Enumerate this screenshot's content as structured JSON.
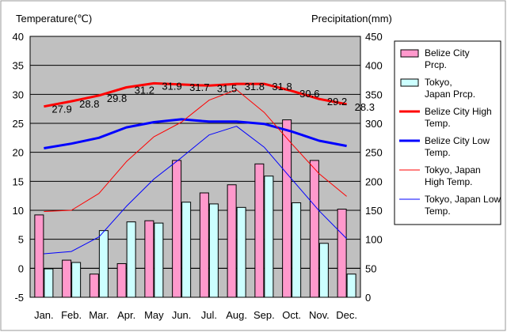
{
  "chart_data": {
    "type": "bar",
    "left_axis": {
      "label": "Temperature(℃)",
      "ylim": [
        -5,
        40
      ],
      "ticks": [
        -5,
        0,
        5,
        10,
        15,
        20,
        25,
        30,
        35,
        40
      ]
    },
    "right_axis": {
      "label": "Precipitation(mm)",
      "ylim": [
        0,
        450
      ],
      "ticks": [
        0,
        50,
        100,
        150,
        200,
        250,
        300,
        350,
        400,
        450
      ]
    },
    "categories": [
      "Jan.",
      "Feb.",
      "Mar.",
      "Apr.",
      "May",
      "Jun.",
      "Jul.",
      "Aug.",
      "Sep.",
      "Oct.",
      "Nov.",
      "Dec."
    ],
    "grid": true,
    "legend_position": "right",
    "bar_series": [
      {
        "name": "Belize City Prcp.",
        "axis": "right",
        "color": "#ff99cc",
        "values": [
          142,
          64,
          40,
          58,
          132,
          236,
          180,
          194,
          230,
          306,
          236,
          152
        ]
      },
      {
        "name": "Tokyo, Japan Prcp.",
        "axis": "right",
        "color": "#ccffff",
        "values": [
          49,
          60,
          115,
          130,
          128,
          164,
          161,
          155,
          209,
          163,
          93,
          40
        ]
      }
    ],
    "line_series": [
      {
        "name": "Belize City High Temp.",
        "axis": "left",
        "color": "#ff0000",
        "width": "thick",
        "values": [
          27.9,
          28.8,
          29.8,
          31.2,
          31.9,
          31.7,
          31.5,
          31.8,
          31.8,
          30.6,
          29.2,
          28.3
        ],
        "show_labels": true
      },
      {
        "name": "Belize City Low Temp.",
        "axis": "left",
        "color": "#0000ff",
        "width": "thick",
        "values": [
          20.7,
          21.5,
          22.5,
          24.3,
          25.2,
          25.7,
          25.3,
          25.3,
          24.9,
          23.6,
          22.0,
          21.1
        ],
        "show_labels": false
      },
      {
        "name": "Tokyo, Japan High Temp.",
        "axis": "left",
        "color": "#ff0000",
        "width": "thin",
        "values": [
          9.8,
          10.0,
          12.9,
          18.4,
          22.7,
          25.2,
          29.0,
          30.8,
          26.9,
          21.5,
          16.3,
          12.4
        ],
        "show_labels": false
      },
      {
        "name": "Tokyo, Japan Low Temp.",
        "axis": "left",
        "color": "#0000ff",
        "width": "thin",
        "values": [
          2.5,
          2.9,
          5.4,
          10.7,
          15.4,
          19.1,
          23.0,
          24.5,
          20.9,
          15.4,
          9.9,
          5.1
        ],
        "show_labels": false
      }
    ]
  }
}
